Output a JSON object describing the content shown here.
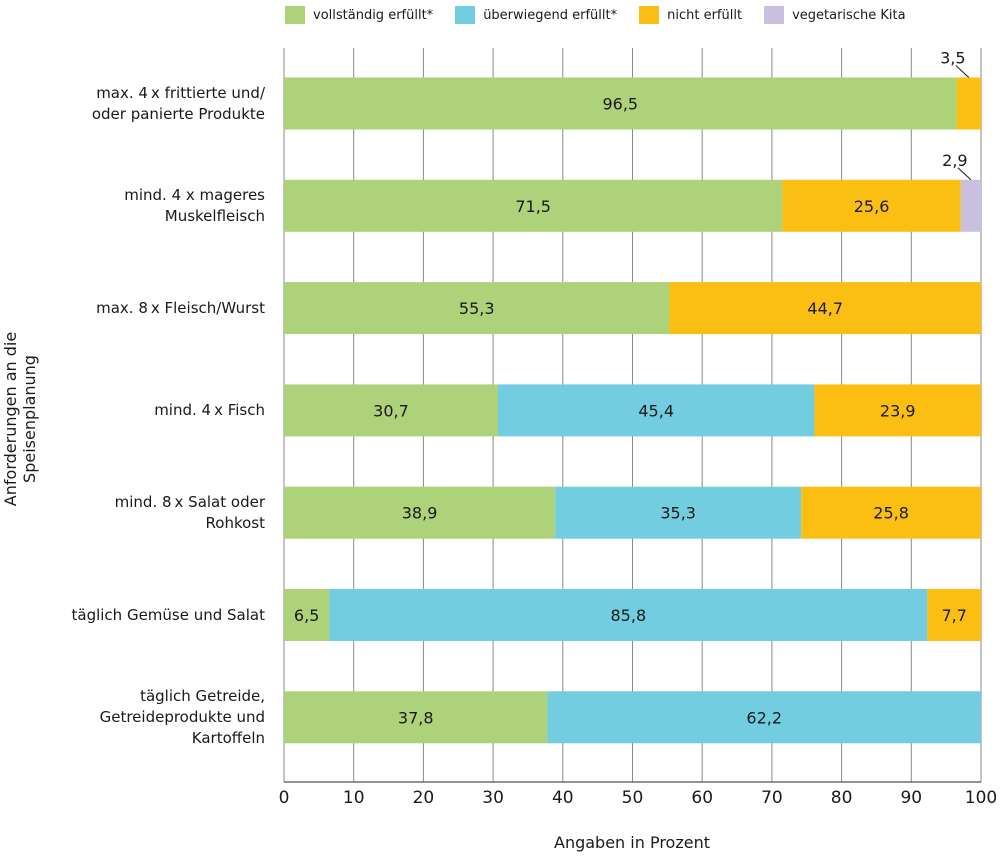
{
  "chart_data": {
    "type": "bar",
    "orientation": "horizontal",
    "stacked": true,
    "xlabel": "Angaben in Prozent",
    "ylabel": "Anforderungen an die Speisenplanung",
    "xlim": [
      0,
      100
    ],
    "xticks": [
      "0",
      "10",
      "20",
      "30",
      "40",
      "50",
      "60",
      "70",
      "80",
      "90",
      "100"
    ],
    "grid": true,
    "legend_position": "top",
    "categories": [
      [
        "max. 4 x frittierte und/",
        "oder panierte Produkte"
      ],
      [
        "mind. 4  x mageres",
        "Muskelfleisch"
      ],
      [
        "max. 8 x Fleisch/Wurst"
      ],
      [
        "mind. 4 x Fisch"
      ],
      [
        "mind. 8 x Salat oder",
        "Rohkost"
      ],
      [
        "täglich Gemüse und Salat"
      ],
      [
        "täglich Getreide,",
        "Getreideprodukte und",
        "Kartoffeln"
      ]
    ],
    "series": [
      {
        "name": "vollständig erfüllt*",
        "color": "#aed27a",
        "values": [
          96.5,
          71.5,
          55.3,
          30.7,
          38.9,
          6.5,
          37.8
        ],
        "labels": [
          "96,5",
          "71,5",
          "55,3",
          "30,7",
          "38,9",
          "6,5",
          "37,8"
        ]
      },
      {
        "name": "überwiegend erfüllt*",
        "color": "#72cde0",
        "values": [
          0,
          0,
          0,
          45.4,
          35.3,
          85.8,
          62.2
        ],
        "labels": [
          "",
          "",
          "",
          "45,4",
          "35,3",
          "85,8",
          "62,2"
        ]
      },
      {
        "name": "nicht erfüllt",
        "color": "#fbbf14",
        "values": [
          3.5,
          25.6,
          44.7,
          23.9,
          25.8,
          7.7,
          0
        ],
        "labels": [
          "3,5",
          "25,6",
          "44,7",
          "23,9",
          "25,8",
          "7,7",
          ""
        ]
      },
      {
        "name": "vegetarische Kita",
        "color": "#c9c0df",
        "values": [
          0,
          2.9,
          0,
          0,
          0,
          0,
          0
        ],
        "labels": [
          "",
          "2,9",
          "",
          "",
          "",
          "",
          ""
        ]
      }
    ],
    "callouts": [
      {
        "row": 0,
        "series": 2,
        "text": "3,5"
      },
      {
        "row": 1,
        "series": 3,
        "text": "2,9"
      }
    ]
  }
}
